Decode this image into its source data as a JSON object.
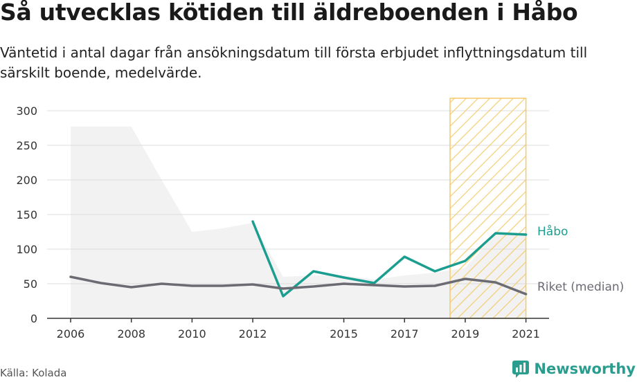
{
  "header": {
    "title": "Så utvecklas kötiden till äldreboenden i Håbo",
    "subtitle": "Väntetid i antal dagar från ansökningsdatum till första erbjudet inflyttningsdatum till särskilt boende, medelvärde."
  },
  "footer": {
    "source": "Källa: Kolada",
    "brand": "Newsworthy",
    "brand_icon": "newsworthy-logo-icon"
  },
  "colors": {
    "habo": "#1b9e8f",
    "riket": "#6b6b73",
    "range": "#f2f2f2",
    "hatch": "#f5c96a",
    "grid": "#dcdcdc"
  },
  "chart_data": {
    "type": "line",
    "title": "Så utvecklas kötiden till äldreboenden i Håbo",
    "subtitle": "Väntetid i antal dagar från ansökningsdatum till första erbjudet inflyttningsdatum till särskilt boende, medelvärde.",
    "xlabel": "",
    "ylabel": "",
    "xlim": [
      2006,
      2021
    ],
    "ylim": [
      0,
      300
    ],
    "grid": true,
    "x_ticks": [
      2006,
      2008,
      2010,
      2012,
      2015,
      2017,
      2019,
      2021
    ],
    "y_ticks": [
      0,
      50,
      100,
      150,
      200,
      250,
      300
    ],
    "highlight_band": {
      "from": 2018.5,
      "to": 2021,
      "style": "hatched"
    },
    "range_band": {
      "x": [
        2006,
        2008,
        2009,
        2010,
        2011,
        2012,
        2013,
        2014,
        2015,
        2016,
        2017,
        2018,
        2019,
        2020,
        2021
      ],
      "upper": [
        277,
        277,
        200,
        125,
        130,
        138,
        60,
        62,
        62,
        56,
        62,
        66,
        73,
        122,
        122
      ],
      "lower": [
        0,
        0,
        0,
        0,
        0,
        0,
        0,
        0,
        0,
        0,
        0,
        0,
        0,
        0,
        0
      ]
    },
    "series": [
      {
        "name": "Håbo",
        "x": [
          2012,
          2013,
          2014,
          2015,
          2016,
          2017,
          2018,
          2019,
          2020,
          2021
        ],
        "values": [
          140,
          32,
          68,
          59,
          51,
          89,
          68,
          83,
          123,
          121
        ]
      },
      {
        "name": "Riket (median)",
        "x": [
          2006,
          2007,
          2008,
          2009,
          2010,
          2011,
          2012,
          2013,
          2014,
          2015,
          2016,
          2017,
          2018,
          2019,
          2020,
          2021
        ],
        "values": [
          60,
          51,
          45,
          50,
          47,
          47,
          49,
          43,
          46,
          50,
          48,
          46,
          47,
          57,
          52,
          35
        ]
      }
    ]
  }
}
